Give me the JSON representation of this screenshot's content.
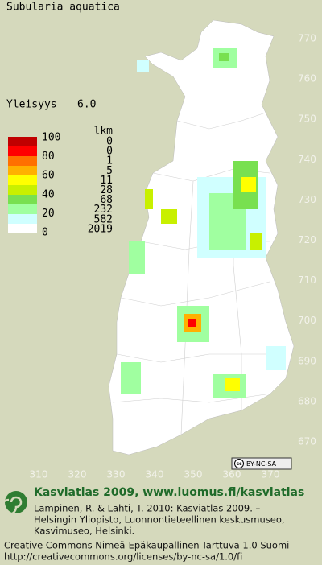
{
  "title": "Subularia aquatica",
  "frequency": {
    "label": "Yleisyys",
    "value": "6.0"
  },
  "legend": {
    "scale_labels": [
      100,
      80,
      60,
      40,
      20,
      0
    ],
    "count_header": "lkm",
    "counts": [
      0,
      0,
      1,
      5,
      11,
      28,
      68,
      232,
      582,
      2019
    ],
    "colors": [
      "#c00000",
      "#ff0000",
      "#ff7000",
      "#ffb000",
      "#ffff00",
      "#c8f000",
      "#78e050",
      "#a0ffa0",
      "#d0ffff",
      "#ffffff"
    ]
  },
  "axes": {
    "right": [
      770,
      760,
      750,
      740,
      730,
      720,
      710,
      700,
      690,
      680,
      670
    ],
    "bottom": [
      310,
      320,
      330,
      340,
      350,
      360,
      370
    ]
  },
  "license_badge": "BY-NC-SA",
  "footer": {
    "heading": "Kasviatlas 2009, www.luomus.fi/kasviatlas",
    "citation": [
      "Lampinen, R. & Lahti, T. 2010: Kasviatlas 2009. –",
      "Helsingin Yliopisto, Luonnontieteellinen keskusmuseo,",
      "Kasvimuseo, Helsinki."
    ],
    "license": [
      "Creative Commons Nimeä-Epäkaupallinen-Tarttuva 1.0 Suomi",
      "http://creativecommons.org/licenses/by-nc-sa/1.0/fi"
    ]
  }
}
